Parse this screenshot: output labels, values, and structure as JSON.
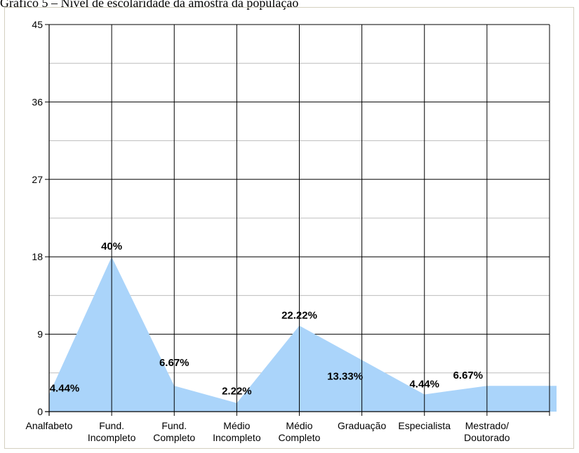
{
  "caption": "Gráfico 5 – Nível de escolaridade da amostra da população",
  "chart_data": {
    "type": "area",
    "title": "Gráfico 5 – Nível de escolaridade da amostra da população",
    "xlabel": "",
    "ylabel": "",
    "ylim": [
      0,
      45
    ],
    "yticks": [
      0,
      9,
      18,
      27,
      36,
      45
    ],
    "grid": true,
    "legend": "none",
    "fill_color": "#aad4fa",
    "categories": [
      [
        "Analfabeto"
      ],
      [
        "Fund.",
        "Incompleto"
      ],
      [
        "Fund.",
        "Completo"
      ],
      [
        "Médio",
        "Incompleto"
      ],
      [
        "Médio",
        "Completo"
      ],
      [
        "Graduação"
      ],
      [
        "Especialista"
      ],
      [
        "Mestrado/",
        "Doutorado"
      ]
    ],
    "values": [
      2,
      18,
      3,
      1,
      10,
      6,
      2,
      3
    ],
    "data_labels": [
      "4.44%",
      "40%",
      "6.67%",
      "2.22%",
      "22.22%",
      "13.33%",
      "4.44%",
      "6.67%"
    ]
  }
}
